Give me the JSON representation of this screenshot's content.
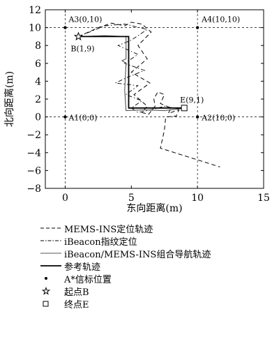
{
  "chart_data": {
    "type": "line",
    "xlabel": "东向距离(m)",
    "ylabel": "北向距离(m)",
    "xlim": [
      -1.5,
      15
    ],
    "ylim": [
      -8,
      12
    ],
    "xticks": [
      "0",
      "5",
      "10",
      "15"
    ],
    "yticks": [
      "12",
      "10",
      "8",
      "6",
      "4",
      "2",
      "0",
      "−2",
      "−4",
      "−6",
      "−8"
    ],
    "grid": "dashed grid at x=0 and x=10, y=0 and y=10",
    "colors": {
      "mems": "#000000",
      "ibeacon": "#000000",
      "fusion": "#555555",
      "reference": "#000000"
    },
    "series": [
      {
        "name": "MEMS-INS定位轨迹",
        "style": "dashed",
        "x": [
          1.0,
          2.5,
          3.5,
          4.5,
          5.0,
          5.8,
          6.5,
          5.5,
          6.2,
          5.0,
          6.4,
          5.2,
          6.2,
          5.8,
          6.3,
          6.8,
          6.7,
          7.0,
          7.5,
          7.2,
          8.0,
          7.8,
          8.6,
          8.4,
          7.6,
          7.5,
          7.2,
          11.7
        ],
        "y": [
          9.0,
          10.0,
          10.5,
          10.2,
          10.6,
          10.4,
          9.5,
          8.0,
          6.5,
          5.0,
          3.8,
          2.5,
          1.2,
          0.5,
          0.3,
          1.2,
          2.0,
          2.8,
          2.5,
          1.5,
          1.0,
          0.4,
          0.8,
          0.1,
          0.0,
          -1.5,
          -3.5,
          -5.6
        ]
      },
      {
        "name": "iBeacon指纹定位",
        "style": "dash-dot",
        "x": [
          1.0,
          3.0,
          4.5,
          6.2,
          5.0,
          4.0,
          5.5,
          4.5,
          6.0,
          4.8,
          3.8,
          5.5,
          4.6,
          5.8,
          5.0,
          5.5,
          6.5,
          7.5,
          8.5,
          9.0
        ],
        "y": [
          9.0,
          10.2,
          10.4,
          9.8,
          8.6,
          8.0,
          7.0,
          6.0,
          5.2,
          4.5,
          3.8,
          3.5,
          2.5,
          1.8,
          1.0,
          0.5,
          0.8,
          1.2,
          0.9,
          1.0
        ]
      },
      {
        "name": "iBeacon/MEMS-INS组合导航轨迹",
        "style": "solid",
        "x": [
          1.0,
          3.0,
          4.6,
          4.6,
          4.3,
          4.6,
          4.5,
          4.6,
          6.0,
          7.5,
          8.6,
          9.2
        ],
        "y": [
          9.0,
          9.1,
          9.0,
          6.5,
          6.3,
          6.0,
          3.0,
          0.7,
          0.8,
          0.7,
          0.9,
          1.0
        ]
      },
      {
        "name": "参考轨迹",
        "style": "solid-thick",
        "x": [
          1.0,
          4.8,
          4.8,
          9.0
        ],
        "y": [
          9.0,
          9.0,
          1.0,
          1.0
        ]
      }
    ],
    "anchors": [
      {
        "label": "A1(0,0)",
        "x": 0,
        "y": 0
      },
      {
        "label": "A2(10,0)",
        "x": 10,
        "y": 0
      },
      {
        "label": "A3(0,10)",
        "x": 0,
        "y": 10
      },
      {
        "label": "A4(10,10)",
        "x": 10,
        "y": 10
      }
    ],
    "start": {
      "label": "B(1,9)",
      "x": 1,
      "y": 9
    },
    "end": {
      "label": "E(9,1)",
      "x": 9,
      "y": 1
    },
    "legend_position": "below",
    "legend": [
      {
        "key": "mems",
        "symbol": "dashed",
        "text": "MEMS-INS定位轨迹"
      },
      {
        "key": "ibeacon",
        "symbol": "dashdot",
        "text": "iBeacon指纹定位"
      },
      {
        "key": "fusion",
        "symbol": "solid",
        "text": "iBeacon/MEMS-INS组合导航轨迹"
      },
      {
        "key": "reference",
        "symbol": "thick",
        "text": "参考轨迹"
      },
      {
        "key": "anchor",
        "symbol": "dot",
        "text": "A*信标位置"
      },
      {
        "key": "start",
        "symbol": "star",
        "text": "起点B"
      },
      {
        "key": "end",
        "symbol": "square",
        "text": "终点E"
      }
    ]
  }
}
